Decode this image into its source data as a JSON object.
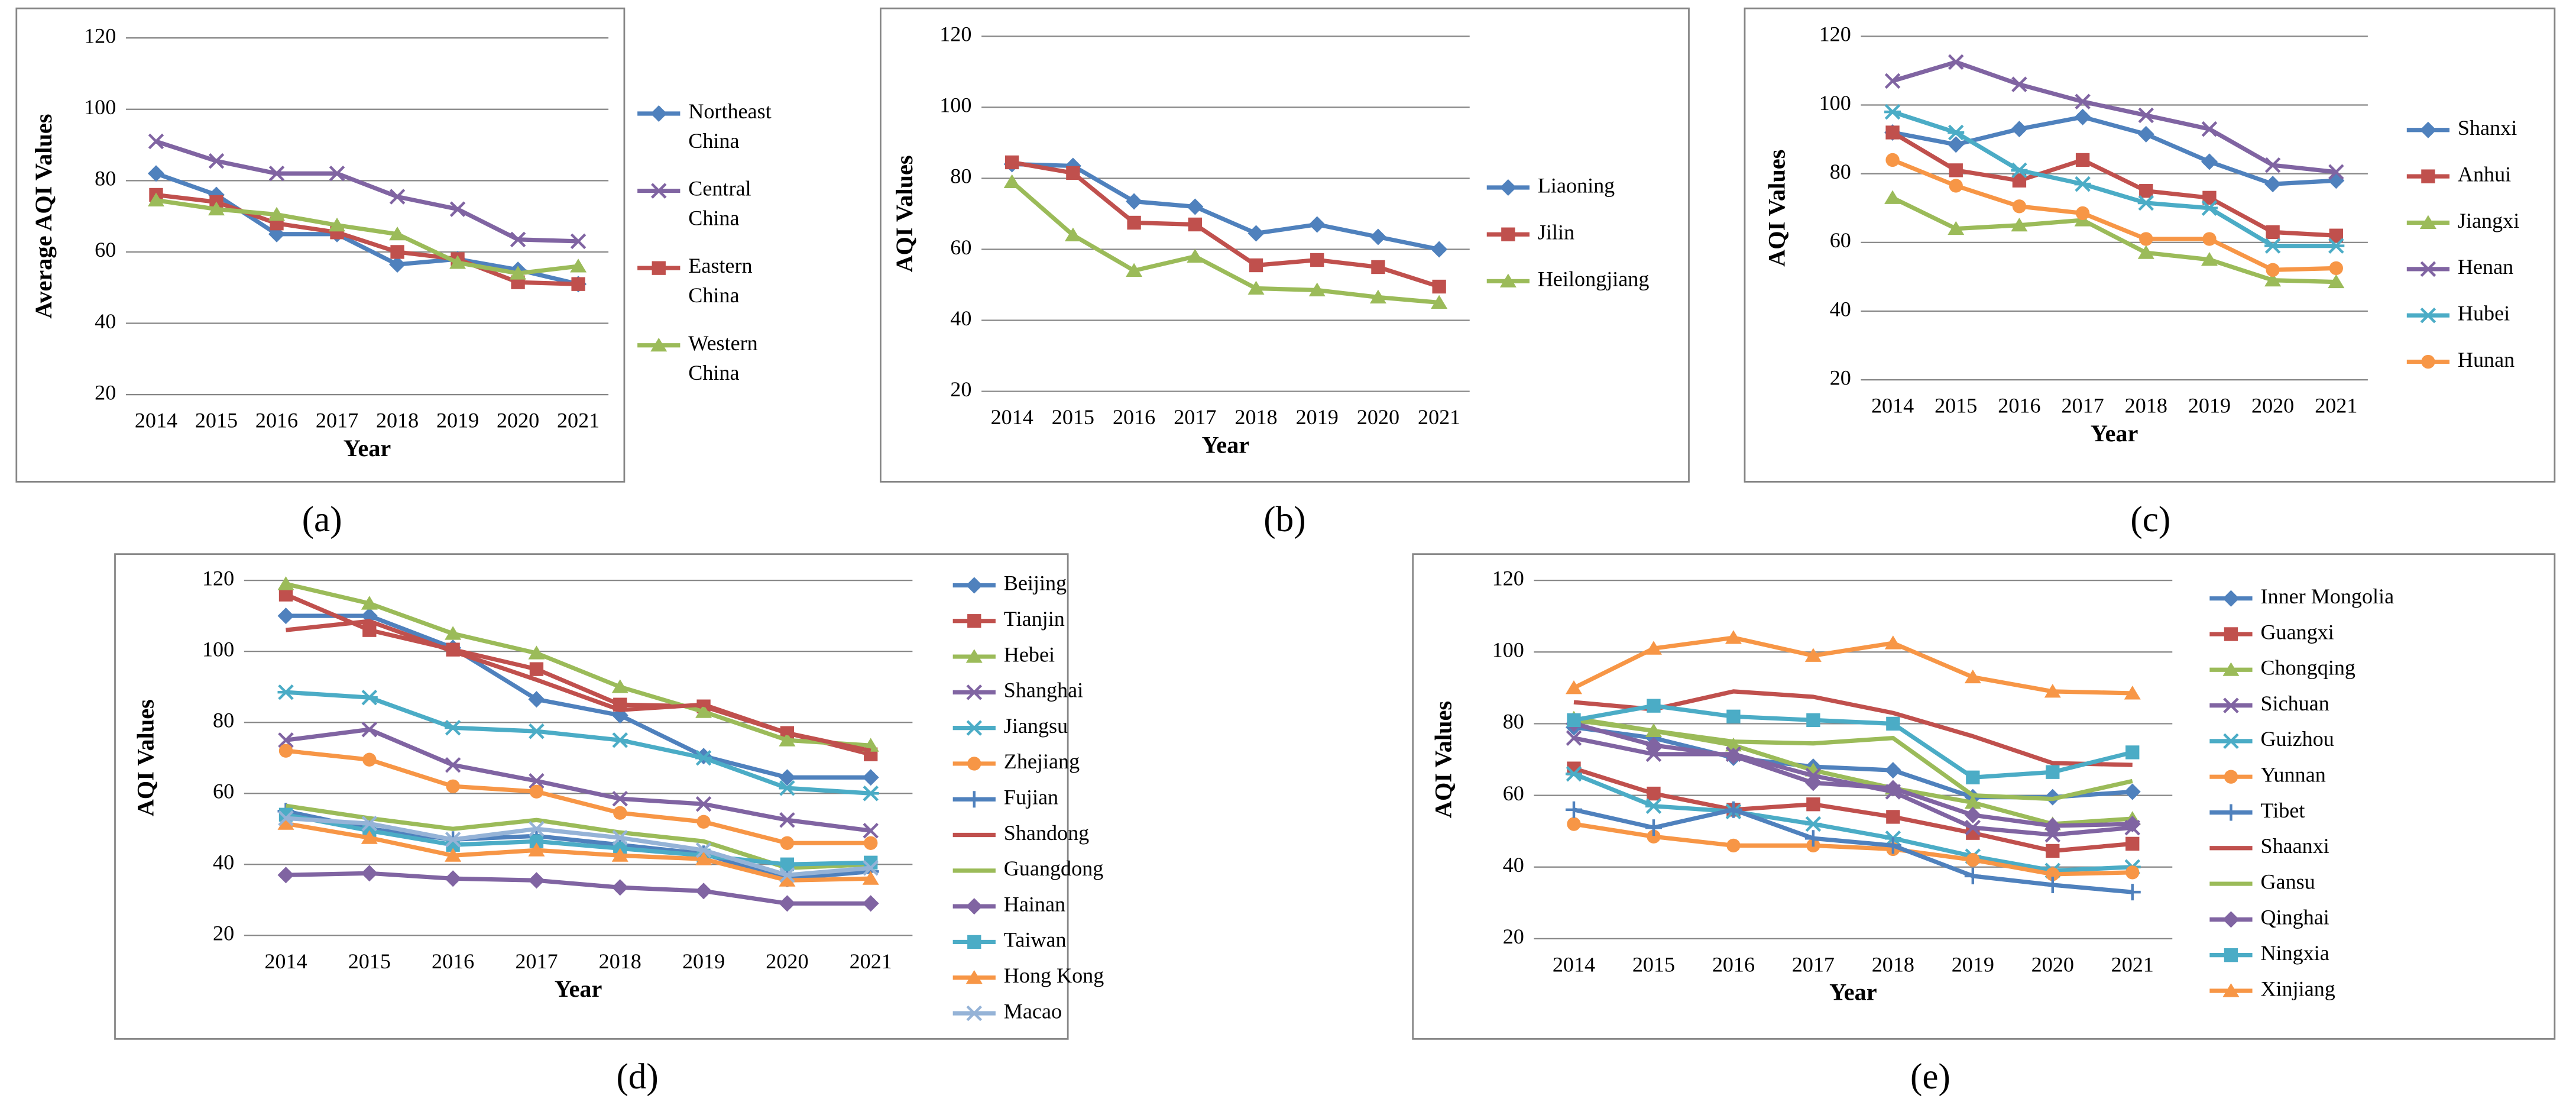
{
  "chart_data": [
    {
      "type": "line",
      "y_label": "Average AQI Values",
      "x_label": "Year",
      "panel_label": "(a)",
      "categories": [
        "2014",
        "2015",
        "2016",
        "2017",
        "2018",
        "2019",
        "2020",
        "2021"
      ],
      "ylim": [
        20,
        120
      ],
      "yticks": [
        20,
        40,
        60,
        80,
        100,
        120
      ],
      "grid": true,
      "series": [
        {
          "name": "Northeast China",
          "color": "#4f81bd",
          "marker": "diamond",
          "values": [
            82,
            76,
            65,
            65,
            56.5,
            58,
            55,
            51
          ]
        },
        {
          "name": "Central China",
          "color": "#8064a2",
          "marker": "x",
          "values": [
            91,
            85.5,
            82,
            82,
            75.5,
            72,
            63.5,
            63
          ]
        },
        {
          "name": "Eastern China",
          "color": "#c0504d",
          "marker": "square",
          "values": [
            76,
            74,
            68,
            65.5,
            60,
            58,
            51.5,
            51
          ]
        },
        {
          "name": "Western China",
          "color": "#9bbb59",
          "marker": "triangle",
          "values": [
            74.5,
            72,
            70.5,
            67.5,
            65,
            57,
            54,
            56
          ]
        }
      ]
    },
    {
      "type": "line",
      "y_label": "AQI Values",
      "x_label": "Year",
      "panel_label": "(b)",
      "categories": [
        "2014",
        "2015",
        "2016",
        "2017",
        "2018",
        "2019",
        "2020",
        "2021"
      ],
      "ylim": [
        20,
        120
      ],
      "yticks": [
        20,
        40,
        60,
        80,
        100,
        120
      ],
      "grid": true,
      "series": [
        {
          "name": "Liaoning",
          "color": "#4f81bd",
          "marker": "diamond",
          "values": [
            84,
            83.5,
            73.5,
            72,
            64.5,
            67,
            63.5,
            60
          ]
        },
        {
          "name": "Jilin",
          "color": "#c0504d",
          "marker": "square",
          "values": [
            84.5,
            81.5,
            67.5,
            67,
            55.5,
            57,
            55,
            49.5
          ]
        },
        {
          "name": "Heilongjiang",
          "color": "#9bbb59",
          "marker": "triangle",
          "values": [
            79,
            64,
            54,
            58,
            49,
            48.5,
            46.5,
            45
          ]
        }
      ]
    },
    {
      "type": "line",
      "y_label": "AQI Values",
      "x_label": "Year",
      "panel_label": "(c)",
      "categories": [
        "2014",
        "2015",
        "2016",
        "2017",
        "2018",
        "2019",
        "2020",
        "2021"
      ],
      "ylim": [
        20,
        120
      ],
      "yticks": [
        20,
        40,
        60,
        80,
        100,
        120
      ],
      "grid": true,
      "series": [
        {
          "name": "Shanxi",
          "color": "#4f81bd",
          "marker": "diamond",
          "values": [
            92,
            88.5,
            93,
            96.5,
            91.5,
            83.5,
            77,
            78
          ]
        },
        {
          "name": "Anhui",
          "color": "#c0504d",
          "marker": "square",
          "values": [
            92,
            81,
            78,
            84,
            75,
            73,
            63,
            62
          ]
        },
        {
          "name": "Jiangxi",
          "color": "#9bbb59",
          "marker": "triangle",
          "values": [
            73,
            64,
            65,
            66.5,
            57,
            55,
            49,
            48.5
          ]
        },
        {
          "name": "Henan",
          "color": "#8064a2",
          "marker": "x",
          "values": [
            107,
            112.5,
            106,
            101,
            97,
            93,
            82.5,
            80.5
          ]
        },
        {
          "name": "Hubei",
          "color": "#4bacc6",
          "marker": "asterisk",
          "values": [
            98,
            92,
            81,
            77,
            71.5,
            70,
            59,
            59
          ]
        },
        {
          "name": "Hunan",
          "color": "#f79646",
          "marker": "circle",
          "values": [
            84,
            76.5,
            70.5,
            68.5,
            61,
            61,
            52,
            52.5
          ]
        }
      ]
    },
    {
      "type": "line",
      "y_label": "AQI Values",
      "x_label": "Year",
      "panel_label": "(d)",
      "categories": [
        "2014",
        "2015",
        "2016",
        "2017",
        "2018",
        "2019",
        "2020",
        "2021"
      ],
      "ylim": [
        20,
        120
      ],
      "yticks": [
        20,
        40,
        60,
        80,
        100,
        120
      ],
      "grid": true,
      "series": [
        {
          "name": "Beijing",
          "color": "#4f81bd",
          "marker": "diamond",
          "values": [
            110,
            110,
            101,
            86.5,
            82,
            70.5,
            64.5,
            64.5
          ]
        },
        {
          "name": "Tianjin",
          "color": "#c0504d",
          "marker": "square",
          "values": [
            116,
            106,
            100.5,
            95,
            85,
            84.5,
            77,
            71
          ]
        },
        {
          "name": "Hebei",
          "color": "#9bbb59",
          "marker": "triangle",
          "values": [
            119,
            113.5,
            105,
            99.5,
            90,
            83,
            75,
            73.5
          ]
        },
        {
          "name": "Shanghai",
          "color": "#8064a2",
          "marker": "x",
          "values": [
            75,
            78,
            68,
            63.5,
            58.5,
            57,
            52.5,
            49.5
          ]
        },
        {
          "name": "Jiangsu",
          "color": "#4bacc6",
          "marker": "asterisk",
          "values": [
            88.5,
            87,
            78.5,
            77.5,
            75,
            70,
            61.5,
            60
          ]
        },
        {
          "name": "Zhejiang",
          "color": "#f79646",
          "marker": "circle",
          "values": [
            72,
            69.5,
            62,
            60.5,
            54.5,
            52,
            46,
            46
          ]
        },
        {
          "name": "Fujian",
          "color": "#4f81bd",
          "marker": "plus",
          "values": [
            55,
            50,
            47,
            48,
            45.5,
            43,
            36,
            38
          ]
        },
        {
          "name": "Shandong",
          "color": "#c0504d",
          "marker": "none",
          "values": [
            106,
            108.5,
            100,
            92,
            83.5,
            85,
            77,
            72
          ]
        },
        {
          "name": "Guangdong",
          "color": "#9bbb59",
          "marker": "none",
          "values": [
            56.5,
            53,
            50,
            52.5,
            49,
            46.5,
            39,
            40
          ]
        },
        {
          "name": "Hainan",
          "color": "#8064a2",
          "marker": "diamond",
          "values": [
            37,
            37.5,
            36,
            35.5,
            33.5,
            32.5,
            29,
            29
          ]
        },
        {
          "name": "Taiwan",
          "color": "#4bacc6",
          "marker": "square",
          "values": [
            54,
            49.5,
            45.5,
            46.5,
            44.5,
            42.5,
            40,
            40.5
          ]
        },
        {
          "name": "Hong Kong",
          "color": "#f79646",
          "marker": "triangle",
          "values": [
            51.5,
            47.5,
            42.5,
            44,
            42.5,
            41.5,
            35.5,
            36
          ]
        },
        {
          "name": "Macao",
          "color": "#95b3d7",
          "marker": "x",
          "values": [
            53,
            51.5,
            47,
            50,
            47.5,
            44,
            37,
            39
          ]
        }
      ]
    },
    {
      "type": "line",
      "y_label": "AQI Values",
      "x_label": "Year",
      "panel_label": "(e)",
      "categories": [
        "2014",
        "2015",
        "2016",
        "2017",
        "2018",
        "2019",
        "2020",
        "2021"
      ],
      "ylim": [
        20,
        120
      ],
      "yticks": [
        20,
        40,
        60,
        80,
        100,
        120
      ],
      "grid": true,
      "series": [
        {
          "name": "Inner Mongolia",
          "color": "#4f81bd",
          "marker": "diamond",
          "values": [
            79,
            76,
            70.5,
            68,
            67,
            59.5,
            59.5,
            61
          ]
        },
        {
          "name": "Guangxi",
          "color": "#c0504d",
          "marker": "square",
          "values": [
            67.5,
            60.5,
            56,
            57.5,
            54,
            49.5,
            44.5,
            46.5
          ]
        },
        {
          "name": "Chongqing",
          "color": "#9bbb59",
          "marker": "triangle",
          "values": [
            81.5,
            78,
            74,
            67,
            62,
            58,
            52,
            53.5
          ]
        },
        {
          "name": "Sichuan",
          "color": "#8064a2",
          "marker": "x",
          "values": [
            76,
            71.5,
            71.5,
            65.5,
            61,
            51,
            49,
            51
          ]
        },
        {
          "name": "Guizhou",
          "color": "#4bacc6",
          "marker": "asterisk",
          "values": [
            66,
            57,
            55.5,
            52,
            48,
            43,
            39,
            40
          ]
        },
        {
          "name": "Yunnan",
          "color": "#f79646",
          "marker": "circle",
          "values": [
            52,
            48.5,
            46,
            46,
            45,
            42,
            38,
            38.5
          ]
        },
        {
          "name": "Tibet",
          "color": "#4f81bd",
          "marker": "plus",
          "values": [
            56,
            51,
            56,
            48,
            46,
            37.5,
            35,
            33
          ]
        },
        {
          "name": "Shaanxi",
          "color": "#c0504d",
          "marker": "none",
          "values": [
            86,
            84,
            89,
            87.5,
            83,
            76.5,
            69,
            68.5
          ]
        },
        {
          "name": "Gansu",
          "color": "#9bbb59",
          "marker": "none",
          "values": [
            81,
            78,
            75,
            74.5,
            76,
            60,
            59,
            64
          ]
        },
        {
          "name": "Qinghai",
          "color": "#8064a2",
          "marker": "diamond",
          "values": [
            80,
            74,
            71,
            63.5,
            62,
            54.5,
            51.5,
            52
          ]
        },
        {
          "name": "Ningxia",
          "color": "#4bacc6",
          "marker": "square",
          "values": [
            81,
            85,
            82,
            81,
            80,
            65,
            66.5,
            72
          ]
        },
        {
          "name": "Xinjiang",
          "color": "#f79646",
          "marker": "triangle",
          "values": [
            90,
            101,
            104,
            99,
            102.5,
            93,
            89,
            88.5
          ]
        }
      ]
    }
  ]
}
